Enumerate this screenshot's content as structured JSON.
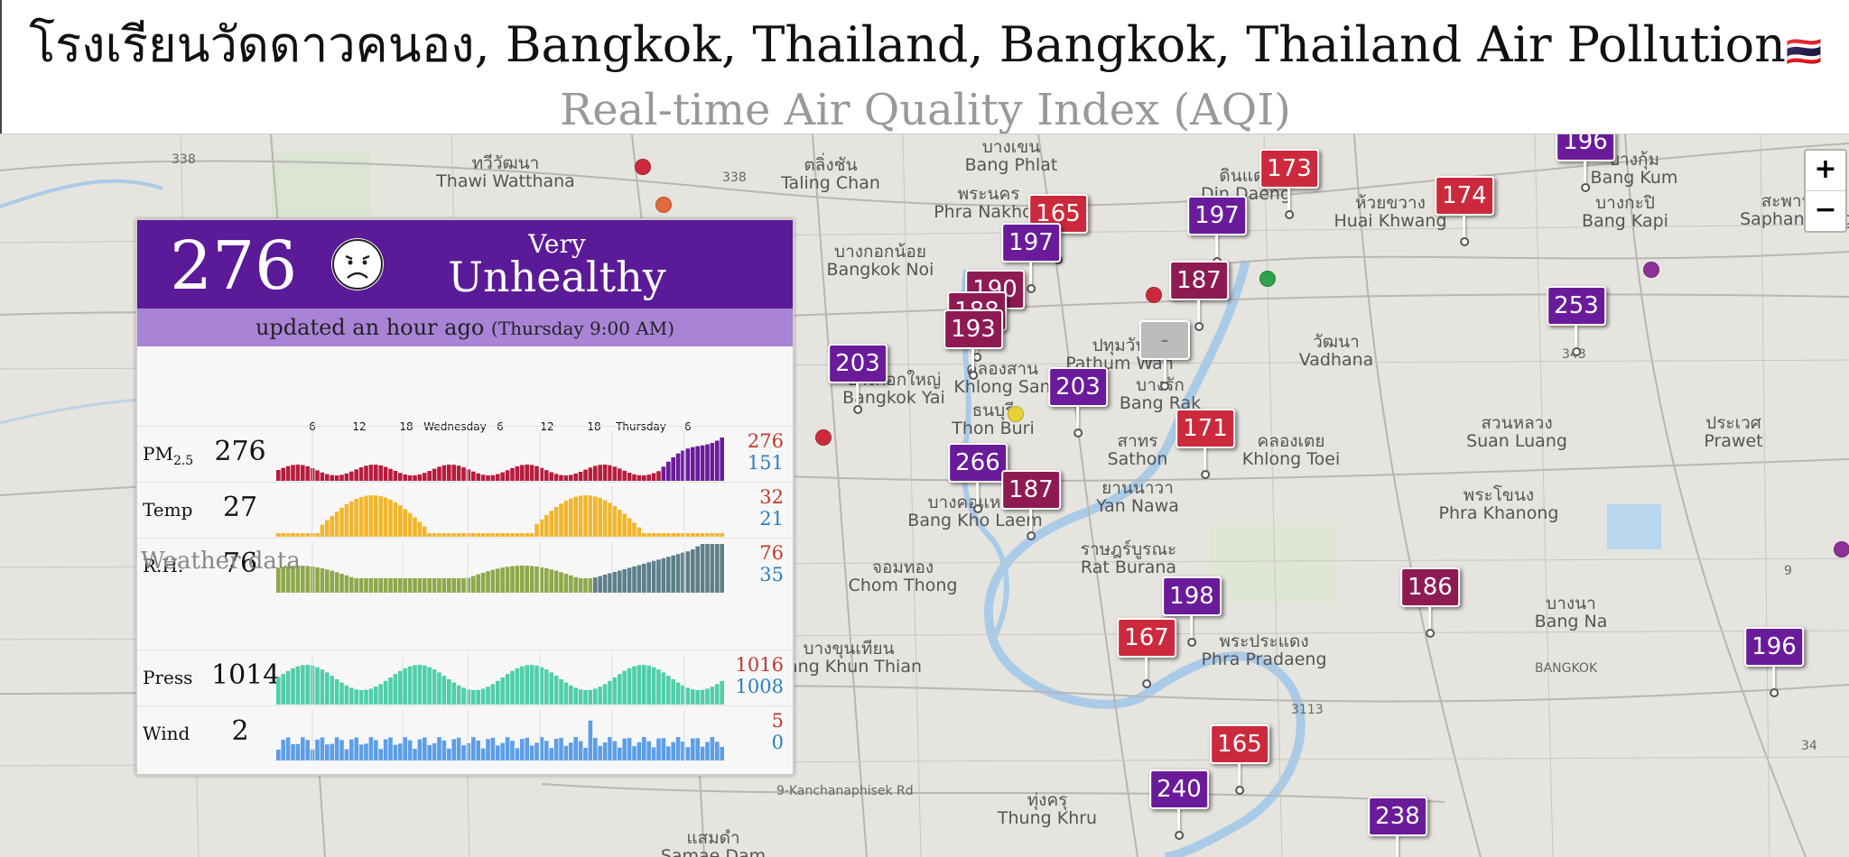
{
  "header": {
    "title": "โรงเรียนวัดดาวคนอง, Bangkok, Thailand, Bangkok, Thailand Air Pollution",
    "flag_emoji": "🇹🇭",
    "subtitle": "Real-time Air Quality Index (AQI)"
  },
  "colors": {
    "very_unhealthy": "#6a1b9a",
    "unhealthy": "#cc2a3c",
    "unhealthy_dark": "#8e1a54",
    "no_data": "#bcbcbc"
  },
  "aqi_panel": {
    "aqi": "276",
    "icon": "frown-face-icon",
    "level_line1": "Very",
    "level_line2": "Unhealthy",
    "updated": "updated an hour ago",
    "updated_detail": "(Thursday 9:00 AM)",
    "time_labels": [
      "6",
      "12",
      "18",
      "Wednesday",
      "6",
      "12",
      "18",
      "Thursday",
      "6"
    ],
    "weather_title": "Weather data",
    "rows": [
      {
        "label": "PM",
        "label_sub": "2.5",
        "value": "276",
        "max": "276",
        "min": "151",
        "color": "#b71c3c"
      },
      {
        "label": "Temp",
        "label_sub": "",
        "value": "27",
        "max": "32",
        "min": "21",
        "color": "#f2b62c"
      },
      {
        "label": "R.H.",
        "label_sub": "",
        "value": "76",
        "max": "76",
        "min": "35",
        "color": "#8fa84a"
      },
      {
        "label": "Press",
        "label_sub": "",
        "value": "1014",
        "max": "1016",
        "min": "1008",
        "color": "#4fcfa9"
      },
      {
        "label": "Wind",
        "label_sub": "",
        "value": "2",
        "max": "5",
        "min": "0",
        "color": "#5c9ee8"
      }
    ]
  },
  "map": {
    "zoom_in": "+",
    "zoom_out": "−",
    "places": [
      {
        "name": "ทวีวัฒนา",
        "sub": "Thawi Watthana"
      },
      {
        "name": "ตลิ่งชัน",
        "sub": "Taling Chan"
      },
      {
        "name": "พระนคร",
        "sub": "Phra Nakhon"
      },
      {
        "name": "บางกอกน้อย",
        "sub": "Bangkok Noi"
      },
      {
        "name": "บางกอกใหญ่",
        "sub": "Bangkok Yai"
      },
      {
        "name": "ธนบุรี",
        "sub": "Thon Buri"
      },
      {
        "name": "บางคอแหลม",
        "sub": "Bang Kho Laem"
      },
      {
        "name": "จอมทอง",
        "sub": "Chom Thong"
      },
      {
        "name": "บางขุนเทียน",
        "sub": "Bang Khun Thian"
      },
      {
        "name": "สาทร",
        "sub": "Sathon"
      },
      {
        "name": "ยานนาวา",
        "sub": "Yan Nawa"
      },
      {
        "name": "ราษฎร์บูรณะ",
        "sub": "Rat Burana"
      },
      {
        "name": "พระประแดง",
        "sub": "Phra Pradaeng"
      },
      {
        "name": "คลองเตย",
        "sub": "Khlong Toei"
      },
      {
        "name": "วัฒนา",
        "sub": "Vadhana"
      },
      {
        "name": "ห้วยขวาง",
        "sub": "Huai Khwang"
      },
      {
        "name": "บางกะปิ",
        "sub": "Bang Kapi"
      },
      {
        "name": "สวนหลวง",
        "sub": "Suan Luang"
      },
      {
        "name": "พระโขนง",
        "sub": "Phra Khanong"
      },
      {
        "name": "ประเวศ",
        "sub": "Prawet"
      },
      {
        "name": "บางนา",
        "sub": "Bang Na"
      },
      {
        "name": "ทุ่งครุ",
        "sub": "Thung Khru"
      },
      {
        "name": "บางเขน",
        "sub": "Bang Phlat"
      },
      {
        "name": "ดินแดง",
        "sub": "Din Daeng"
      },
      {
        "name": "สะพานสูง",
        "sub": "Saphan Sung"
      },
      {
        "name": "บางกุ้ม",
        "sub": "Bang Kum"
      },
      {
        "name": "แสมดำ",
        "sub": "Samae Dam"
      },
      {
        "name": "คลองสาน",
        "sub": "Khlong San"
      },
      {
        "name": "ปทุมวัน",
        "sub": "Pathum Wan"
      },
      {
        "name": "บางรัก",
        "sub": "Bang Rak"
      }
    ],
    "road_labels": [
      "338",
      "338",
      "9",
      "343",
      "3113",
      "34",
      "9-Kanchanaphisek Rd",
      "BANGKOK"
    ],
    "markers": [
      {
        "value": "173"
      },
      {
        "value": "196"
      },
      {
        "value": "174"
      },
      {
        "value": "165"
      },
      {
        "value": "197"
      },
      {
        "value": "197"
      },
      {
        "value": "187"
      },
      {
        "value": "190"
      },
      {
        "value": "188"
      },
      {
        "value": "193"
      },
      {
        "value": "203"
      },
      {
        "value": "203"
      },
      {
        "value": "-"
      },
      {
        "value": "171"
      },
      {
        "value": "253"
      },
      {
        "value": "266"
      },
      {
        "value": "187"
      },
      {
        "value": "198"
      },
      {
        "value": "186"
      },
      {
        "value": "167"
      },
      {
        "value": "196"
      },
      {
        "value": "165"
      },
      {
        "value": "240"
      },
      {
        "value": "238"
      }
    ]
  }
}
